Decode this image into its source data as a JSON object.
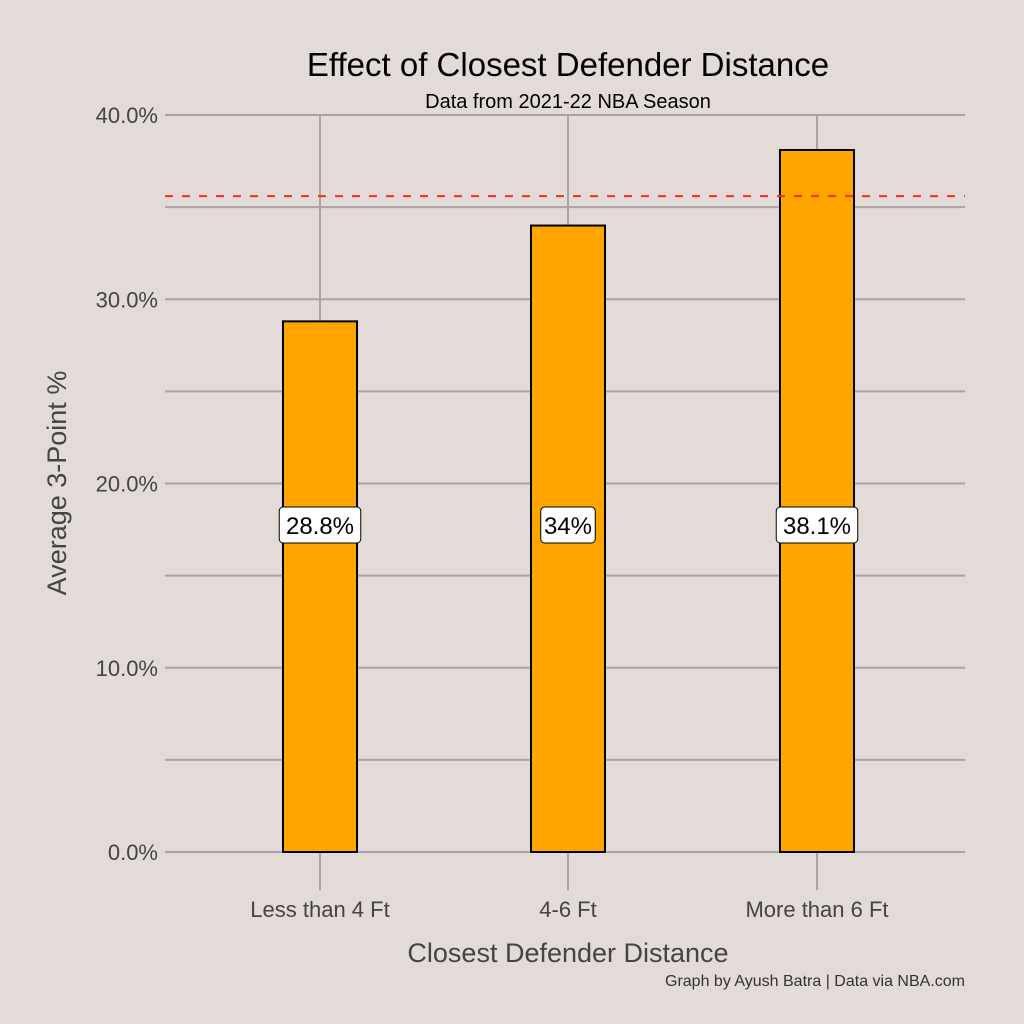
{
  "chart_data": {
    "type": "bar",
    "title": "Effect of Closest Defender Distance",
    "subtitle": "Data from 2021-22 NBA Season",
    "xlabel": "Closest Defender Distance",
    "ylabel": "Average 3-Point %",
    "caption": "Graph by Ayush Batra | Data via NBA.com",
    "categories": [
      "Less than 4 Ft",
      "4-6 Ft",
      "More than 6 Ft"
    ],
    "values": [
      28.8,
      34.0,
      38.1
    ],
    "data_labels": [
      "28.8%",
      "34%",
      "38.1%"
    ],
    "ylim": [
      0,
      40
    ],
    "yticks": [
      0,
      10,
      20,
      30,
      40
    ],
    "ytick_labels": [
      "0.0%",
      "10.0%",
      "20.0%",
      "30.0%",
      "40.0%"
    ],
    "minor_yticks": [
      5,
      15,
      25,
      35
    ],
    "reference_line": {
      "value": 35.6,
      "style": "dashed",
      "color": "#ff2a1a"
    },
    "grid": true,
    "bar_color": "#ffa500",
    "bar_edge_color": "#000000"
  }
}
